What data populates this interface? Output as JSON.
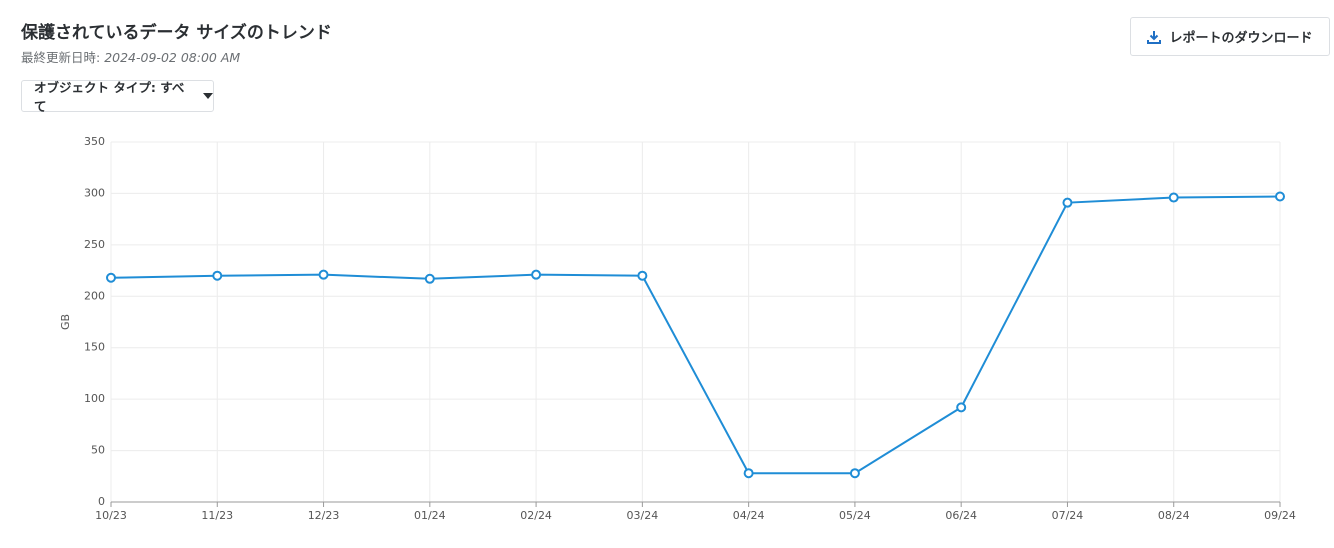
{
  "header": {
    "title": "保護されているデータ サイズのトレンド",
    "updated_label": "最終更新日時:",
    "updated_value": "2024-09-02 08:00 AM",
    "download_button": "レポートのダウンロード"
  },
  "filter": {
    "label": "オブジェクト タイプ: すべて"
  },
  "chart_data": {
    "type": "line",
    "y_label": "GB",
    "categories": [
      "10/23",
      "11/23",
      "12/23",
      "01/24",
      "02/24",
      "03/24",
      "04/24",
      "05/24",
      "06/24",
      "07/24",
      "08/24",
      "09/24"
    ],
    "values": [
      218,
      220,
      221,
      217,
      221,
      220,
      28,
      28,
      92,
      291,
      296,
      297
    ],
    "color": "#1f8dd6",
    "ylim": [
      0,
      350
    ],
    "yticks": [
      0,
      50,
      100,
      150,
      200,
      250,
      300,
      350
    ],
    "grid": true
  }
}
